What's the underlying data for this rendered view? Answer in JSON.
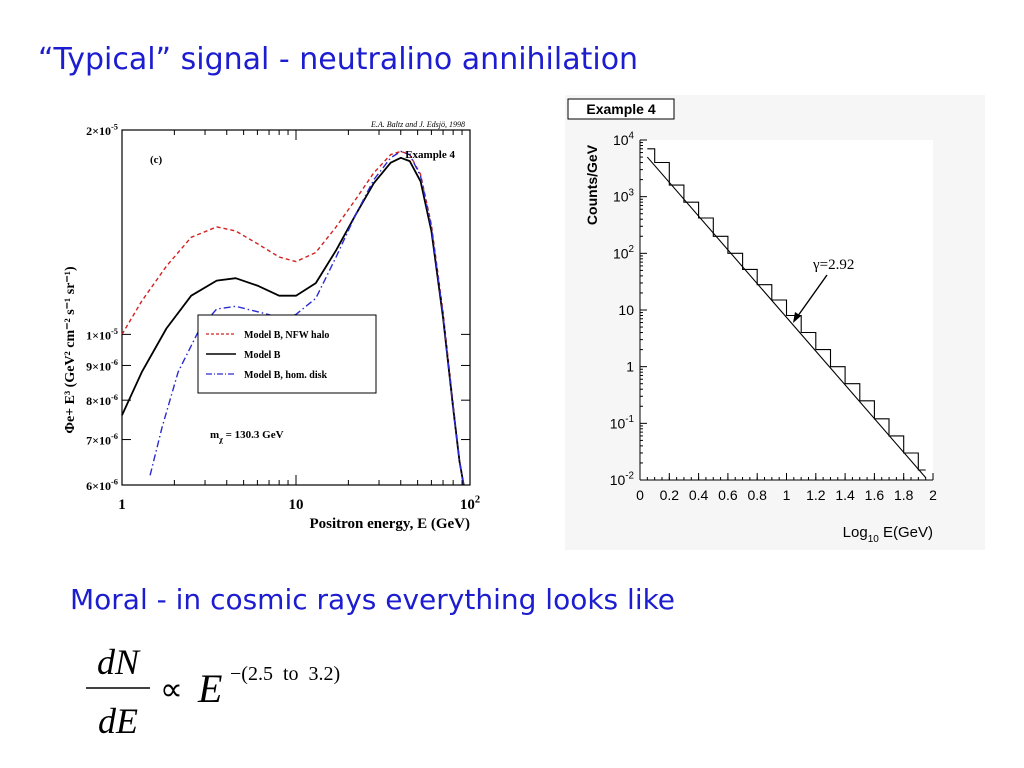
{
  "slide": {
    "title": "“Typical” signal - neutralino annihilation",
    "moral": "Moral - in cosmic rays everything looks like"
  },
  "formula": {
    "numerator": "dN",
    "denominator": "dE",
    "relation": "∝",
    "base": "E",
    "exponent": "−(2.5  to  3.2)"
  },
  "chart_data": [
    {
      "type": "line",
      "panel_label": "(c)",
      "credit": "E.A. Baltz and J. Edsjö, 1998",
      "example_label": "Example 4",
      "xlabel": "Positron energy, E (GeV)",
      "ylabel": "Φe+ E³ (GeV² cm⁻² s⁻¹ sr⁻¹)",
      "x_scale": "log",
      "y_scale": "log",
      "xlim": [
        1,
        100
      ],
      "ylim": [
        6e-06,
        2e-05
      ],
      "x_ticks": [
        {
          "value": 1,
          "label": "1"
        },
        {
          "value": 10,
          "label": "10"
        },
        {
          "value": 100,
          "label": "10",
          "sup": "2"
        }
      ],
      "y_ticks": [
        {
          "value": 6e-06,
          "label": "6×10",
          "sup": "-6"
        },
        {
          "value": 7e-06,
          "label": "7×10",
          "sup": "-6"
        },
        {
          "value": 8e-06,
          "label": "8×10",
          "sup": "-6"
        },
        {
          "value": 9e-06,
          "label": "9×10",
          "sup": "-6"
        },
        {
          "value": 1e-05,
          "label": "1×10",
          "sup": "-5"
        },
        {
          "value": 2e-05,
          "label": "2×10",
          "sup": "-5"
        }
      ],
      "annotation": {
        "text": "m",
        "sub": "χ",
        "rest": " = 130.3 GeV"
      },
      "legend_position": "center",
      "series": [
        {
          "name": "Model B, NFW halo",
          "color": "#d42020",
          "dash": "dashed",
          "x": [
            1,
            1.3,
            1.8,
            2.5,
            3.5,
            4.5,
            6,
            8,
            10,
            13,
            17,
            22,
            28,
            35,
            40,
            45,
            52,
            60,
            70,
            80,
            87,
            92
          ],
          "y": [
            1e-05,
            1.12e-05,
            1.26e-05,
            1.39e-05,
            1.44e-05,
            1.42e-05,
            1.36e-05,
            1.3e-05,
            1.28e-05,
            1.32e-05,
            1.44e-05,
            1.58e-05,
            1.73e-05,
            1.84e-05,
            1.86e-05,
            1.84e-05,
            1.72e-05,
            1.45e-05,
            1.08e-05,
            7.9e-06,
            6.5e-06,
            6e-06
          ]
        },
        {
          "name": "Model B",
          "color": "#000000",
          "dash": "solid",
          "x": [
            1,
            1.3,
            1.8,
            2.5,
            3.5,
            4.5,
            6,
            8,
            10,
            13,
            17,
            22,
            28,
            35,
            40,
            45,
            52,
            60,
            70,
            80,
            87,
            92
          ],
          "y": [
            7.6e-06,
            8.8e-06,
            1.02e-05,
            1.14e-05,
            1.2e-05,
            1.21e-05,
            1.18e-05,
            1.14e-05,
            1.14e-05,
            1.19e-05,
            1.33e-05,
            1.5e-05,
            1.67e-05,
            1.79e-05,
            1.82e-05,
            1.8e-05,
            1.68e-05,
            1.42e-05,
            1.06e-05,
            7.8e-06,
            6.5e-06,
            6e-06
          ]
        },
        {
          "name": "Model B, hom. disk",
          "color": "#2a2ad0",
          "dash": "dashdot",
          "x": [
            1.45,
            1.7,
            2.1,
            2.8,
            3.5,
            4.5,
            6,
            8,
            10,
            13,
            17,
            22,
            28,
            35,
            40,
            45,
            52,
            60,
            70,
            80,
            87,
            92
          ],
          "y": [
            6.2e-06,
            7.3e-06,
            8.8e-06,
            1.02e-05,
            1.09e-05,
            1.1e-05,
            1.08e-05,
            1.06e-05,
            1.07e-05,
            1.13e-05,
            1.3e-05,
            1.5e-05,
            1.69e-05,
            1.82e-05,
            1.86e-05,
            1.84e-05,
            1.71e-05,
            1.44e-05,
            1.07e-05,
            7.8e-06,
            6.5e-06,
            6e-06
          ]
        }
      ]
    },
    {
      "type": "line",
      "title": "Example 4",
      "xlabel": "Log",
      "xlabel_sub": "10",
      "xlabel_rest": " E(GeV)",
      "ylabel": "Counts/GeV",
      "y_scale": "log",
      "xlim": [
        0,
        2
      ],
      "ylim": [
        0.01,
        10000
      ],
      "x_ticks": [
        "0",
        "0.2",
        "0.4",
        "0.6",
        "0.8",
        "1",
        "1.2",
        "1.4",
        "1.6",
        "1.8",
        "2"
      ],
      "y_ticks": [
        {
          "value": 10000,
          "label": "10",
          "sup": "4"
        },
        {
          "value": 1000,
          "label": "10",
          "sup": "3"
        },
        {
          "value": 100,
          "label": "10",
          "sup": "2"
        },
        {
          "value": 10,
          "label": "10"
        },
        {
          "value": 1,
          "label": "1"
        },
        {
          "value": 0.1,
          "label": "10",
          "sup": "-1"
        },
        {
          "value": 0.01,
          "label": "10",
          "sup": "-2"
        }
      ],
      "annotation": {
        "text": "γ=2.92",
        "points_to": [
          1.05,
          4
        ]
      },
      "fit_line": {
        "x": [
          0.05,
          1.95
        ],
        "y": [
          5000,
          0.011
        ]
      },
      "histogram": {
        "bin_edges": [
          0.05,
          0.1,
          0.2,
          0.3,
          0.4,
          0.5,
          0.6,
          0.7,
          0.8,
          0.9,
          1.0,
          1.1,
          1.2,
          1.3,
          1.4,
          1.5,
          1.6,
          1.7,
          1.8,
          1.9,
          1.95
        ],
        "counts": [
          7000,
          4000,
          1600,
          800,
          420,
          200,
          100,
          52,
          28,
          15,
          8,
          4,
          2,
          1,
          0.5,
          0.25,
          0.12,
          0.06,
          0.03,
          0.015
        ]
      }
    }
  ]
}
